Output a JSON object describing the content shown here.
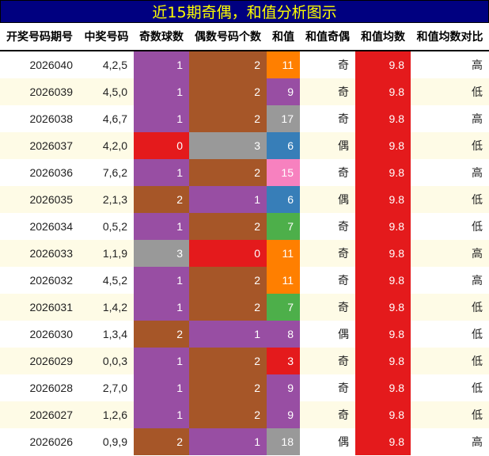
{
  "title": "近15期奇偶，和值分析图示",
  "headers": [
    "开奖号码期号",
    "中奖号码",
    "奇数球数",
    "偶数号码个数",
    "和值",
    "和值奇偶",
    "和值均数",
    "和值均数对比"
  ],
  "avg_color": "#E41A1C",
  "rows": [
    {
      "issue": "2026040",
      "nums": "4,2,5",
      "odd": "1",
      "odd_color": "#984EA3",
      "even": "2",
      "even_color": "#A65628",
      "sum": "11",
      "sum_color": "#FF7F00",
      "parity": "奇",
      "avg": "9.8",
      "cmp": "高"
    },
    {
      "issue": "2026039",
      "nums": "4,5,0",
      "odd": "1",
      "odd_color": "#984EA3",
      "even": "2",
      "even_color": "#A65628",
      "sum": "9",
      "sum_color": "#984EA3",
      "parity": "奇",
      "avg": "9.8",
      "cmp": "低"
    },
    {
      "issue": "2026038",
      "nums": "4,6,7",
      "odd": "1",
      "odd_color": "#984EA3",
      "even": "2",
      "even_color": "#A65628",
      "sum": "17",
      "sum_color": "#999999",
      "parity": "奇",
      "avg": "9.8",
      "cmp": "高"
    },
    {
      "issue": "2026037",
      "nums": "4,2,0",
      "odd": "0",
      "odd_color": "#E41A1C",
      "even": "3",
      "even_color": "#999999",
      "sum": "6",
      "sum_color": "#377EB8",
      "parity": "偶",
      "avg": "9.8",
      "cmp": "低"
    },
    {
      "issue": "2026036",
      "nums": "7,6,2",
      "odd": "1",
      "odd_color": "#984EA3",
      "even": "2",
      "even_color": "#A65628",
      "sum": "15",
      "sum_color": "#F781BF",
      "parity": "奇",
      "avg": "9.8",
      "cmp": "高"
    },
    {
      "issue": "2026035",
      "nums": "2,1,3",
      "odd": "2",
      "odd_color": "#A65628",
      "even": "1",
      "even_color": "#984EA3",
      "sum": "6",
      "sum_color": "#377EB8",
      "parity": "偶",
      "avg": "9.8",
      "cmp": "低"
    },
    {
      "issue": "2026034",
      "nums": "0,5,2",
      "odd": "1",
      "odd_color": "#984EA3",
      "even": "2",
      "even_color": "#A65628",
      "sum": "7",
      "sum_color": "#4DAF4A",
      "parity": "奇",
      "avg": "9.8",
      "cmp": "低"
    },
    {
      "issue": "2026033",
      "nums": "1,1,9",
      "odd": "3",
      "odd_color": "#999999",
      "even": "0",
      "even_color": "#E41A1C",
      "sum": "11",
      "sum_color": "#FF7F00",
      "parity": "奇",
      "avg": "9.8",
      "cmp": "高"
    },
    {
      "issue": "2026032",
      "nums": "4,5,2",
      "odd": "1",
      "odd_color": "#984EA3",
      "even": "2",
      "even_color": "#A65628",
      "sum": "11",
      "sum_color": "#FF7F00",
      "parity": "奇",
      "avg": "9.8",
      "cmp": "高"
    },
    {
      "issue": "2026031",
      "nums": "1,4,2",
      "odd": "1",
      "odd_color": "#984EA3",
      "even": "2",
      "even_color": "#A65628",
      "sum": "7",
      "sum_color": "#4DAF4A",
      "parity": "奇",
      "avg": "9.8",
      "cmp": "低"
    },
    {
      "issue": "2026030",
      "nums": "1,3,4",
      "odd": "2",
      "odd_color": "#A65628",
      "even": "1",
      "even_color": "#984EA3",
      "sum": "8",
      "sum_color": "#984EA3",
      "parity": "偶",
      "avg": "9.8",
      "cmp": "低"
    },
    {
      "issue": "2026029",
      "nums": "0,0,3",
      "odd": "1",
      "odd_color": "#984EA3",
      "even": "2",
      "even_color": "#A65628",
      "sum": "3",
      "sum_color": "#E41A1C",
      "parity": "奇",
      "avg": "9.8",
      "cmp": "低"
    },
    {
      "issue": "2026028",
      "nums": "2,7,0",
      "odd": "1",
      "odd_color": "#984EA3",
      "even": "2",
      "even_color": "#A65628",
      "sum": "9",
      "sum_color": "#984EA3",
      "parity": "奇",
      "avg": "9.8",
      "cmp": "低"
    },
    {
      "issue": "2026027",
      "nums": "1,2,6",
      "odd": "1",
      "odd_color": "#984EA3",
      "even": "2",
      "even_color": "#A65628",
      "sum": "9",
      "sum_color": "#984EA3",
      "parity": "奇",
      "avg": "9.8",
      "cmp": "低"
    },
    {
      "issue": "2026026",
      "nums": "0,9,9",
      "odd": "2",
      "odd_color": "#A65628",
      "even": "1",
      "even_color": "#984EA3",
      "sum": "18",
      "sum_color": "#999999",
      "parity": "偶",
      "avg": "9.8",
      "cmp": "高"
    }
  ]
}
